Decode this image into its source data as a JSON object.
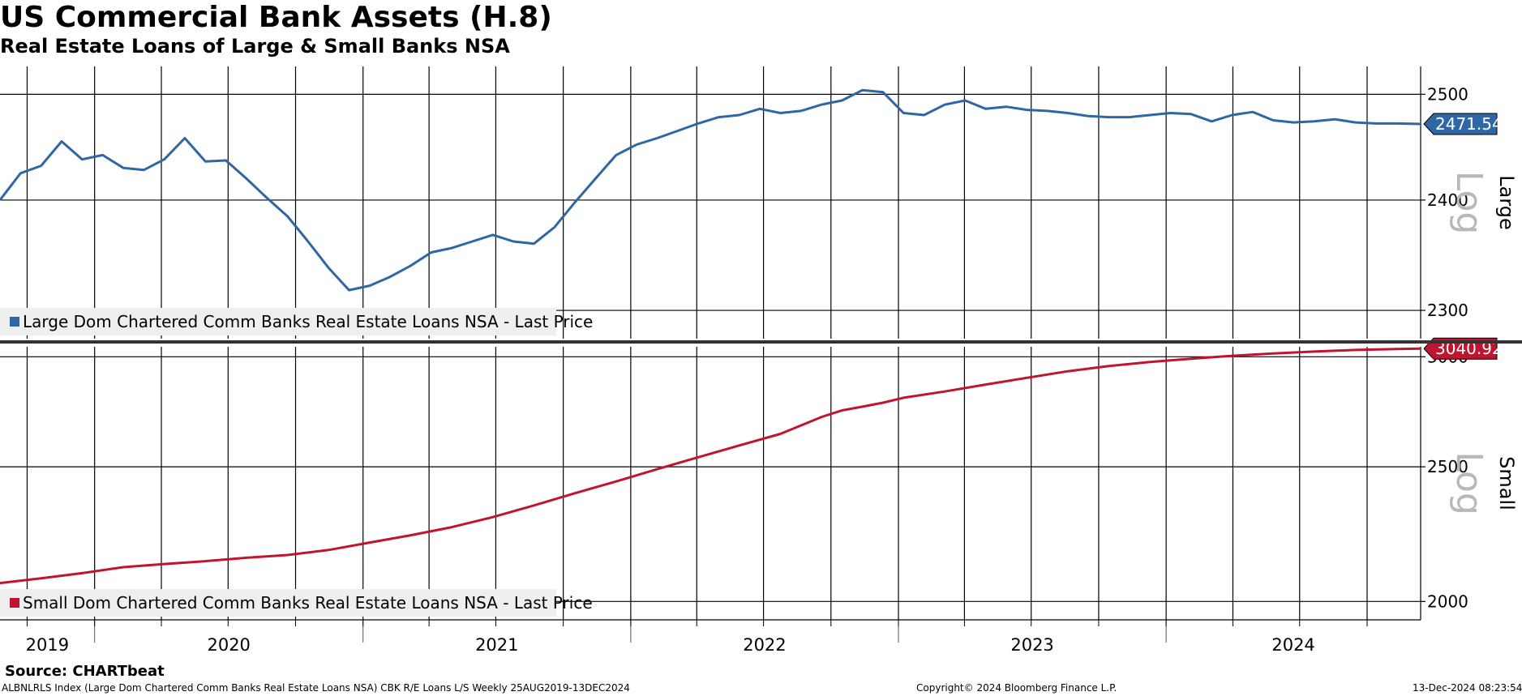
{
  "header": {
    "title": "US Commercial Bank Assets (H.8)",
    "subtitle": "Real Estate Loans of Large & Small Banks NSA"
  },
  "footer": {
    "source": "Source: CHARTbeat",
    "description": "ALBNLRLS Index (Large Dom Chartered Comm Banks Real Estate Loans NSA) CBK R/E Loans L/S  Weekly 25AUG2019-13DEC2024",
    "copyright": "Copyright© 2024 Bloomberg Finance L.P.",
    "timestamp": "13-Dec-2024 08:23:54"
  },
  "chart_data": [
    {
      "type": "line",
      "panel": "Large",
      "scale_label": "Log",
      "y_scale": "log",
      "ylim": [
        2275,
        2527
      ],
      "yticks": [
        2300,
        2400,
        2500
      ],
      "last_value": "2471.54",
      "color": "#2e67a3",
      "legend": "Large Dom Chartered Comm Banks Real Estate Loans NSA - Last Price",
      "series": [
        {
          "name": "Large Dom Chartered Comm Banks Real Estate Loans NSA - Last Price",
          "x": [
            "2019-08-25",
            "2019-09-22",
            "2019-10-20",
            "2019-11-17",
            "2019-12-15",
            "2020-01-12",
            "2020-02-09",
            "2020-03-08",
            "2020-04-05",
            "2020-05-03",
            "2020-05-31",
            "2020-06-28",
            "2020-07-26",
            "2020-08-23",
            "2020-09-20",
            "2020-10-18",
            "2020-11-15",
            "2020-12-13",
            "2021-01-10",
            "2021-02-07",
            "2021-03-07",
            "2021-04-04",
            "2021-05-02",
            "2021-05-30",
            "2021-06-27",
            "2021-07-25",
            "2021-08-22",
            "2021-09-19",
            "2021-10-17",
            "2021-11-14",
            "2021-12-12",
            "2022-01-09",
            "2022-02-06",
            "2022-03-06",
            "2022-04-03",
            "2022-05-01",
            "2022-05-29",
            "2022-06-26",
            "2022-07-24",
            "2022-08-21",
            "2022-09-18",
            "2022-10-16",
            "2022-11-13",
            "2022-12-11",
            "2023-01-08",
            "2023-02-05",
            "2023-03-05",
            "2023-04-02",
            "2023-04-30",
            "2023-05-28",
            "2023-06-25",
            "2023-07-23",
            "2023-08-20",
            "2023-09-17",
            "2023-10-15",
            "2023-11-12",
            "2023-12-10",
            "2024-01-07",
            "2024-02-04",
            "2024-03-03",
            "2024-03-31",
            "2024-04-28",
            "2024-05-26",
            "2024-06-23",
            "2024-07-21",
            "2024-08-18",
            "2024-09-15",
            "2024-10-13",
            "2024-11-10",
            "2024-12-13"
          ],
          "y": [
            2400,
            2425,
            2432,
            2455,
            2438,
            2442,
            2430,
            2428,
            2438,
            2458,
            2436,
            2437,
            2420,
            2402,
            2385,
            2362,
            2338,
            2318,
            2322,
            2330,
            2340,
            2352,
            2356,
            2362,
            2368,
            2362,
            2360,
            2375,
            2398,
            2420,
            2442,
            2452,
            2458,
            2465,
            2472,
            2478,
            2480,
            2486,
            2482,
            2484,
            2490,
            2494,
            2504,
            2502,
            2482,
            2480,
            2490,
            2494,
            2486,
            2488,
            2485,
            2484,
            2482,
            2479,
            2478,
            2478,
            2480,
            2482,
            2481,
            2474,
            2480,
            2483,
            2475,
            2473,
            2474,
            2476,
            2473,
            2472,
            2472,
            2471.54
          ]
        }
      ]
    },
    {
      "type": "line",
      "panel": "Small",
      "scale_label": "Log",
      "y_scale": "log",
      "ylim": [
        1940,
        3050
      ],
      "yticks": [
        2000,
        2500,
        3000
      ],
      "last_value": "3040.92",
      "color": "#c0152f",
      "legend": "Small Dom Chartered Comm Banks Real Estate Loans NSA - Last Price",
      "series": [
        {
          "name": "Small Dom Chartered Comm Banks Real Estate Loans NSA - Last Price",
          "x": [
            "2019-08-25",
            "2019-10-20",
            "2019-12-15",
            "2020-02-09",
            "2020-04-05",
            "2020-05-31",
            "2020-07-26",
            "2020-09-20",
            "2020-11-15",
            "2021-01-10",
            "2021-03-07",
            "2021-05-02",
            "2021-06-27",
            "2021-08-22",
            "2021-10-17",
            "2021-12-12",
            "2022-02-06",
            "2022-04-03",
            "2022-05-29",
            "2022-07-24",
            "2022-09-18",
            "2022-10-16",
            "2022-11-13",
            "2022-12-11",
            "2023-01-08",
            "2023-03-05",
            "2023-04-30",
            "2023-06-25",
            "2023-08-20",
            "2023-10-15",
            "2023-12-10",
            "2024-02-04",
            "2024-03-31",
            "2024-05-26",
            "2024-07-21",
            "2024-09-15",
            "2024-11-10",
            "2024-12-13"
          ],
          "y": [
            2062,
            2078,
            2096,
            2117,
            2128,
            2138,
            2150,
            2160,
            2178,
            2205,
            2232,
            2262,
            2300,
            2345,
            2393,
            2440,
            2490,
            2540,
            2590,
            2640,
            2715,
            2745,
            2762,
            2780,
            2803,
            2832,
            2865,
            2897,
            2929,
            2954,
            2974,
            2990,
            3005,
            3016,
            3026,
            3034,
            3039,
            3040.92
          ]
        }
      ]
    }
  ],
  "x_axis": {
    "start": "2019-08-25",
    "end": "2024-12-13",
    "years": [
      "2019",
      "2020",
      "2021",
      "2022",
      "2023",
      "2024"
    ]
  }
}
